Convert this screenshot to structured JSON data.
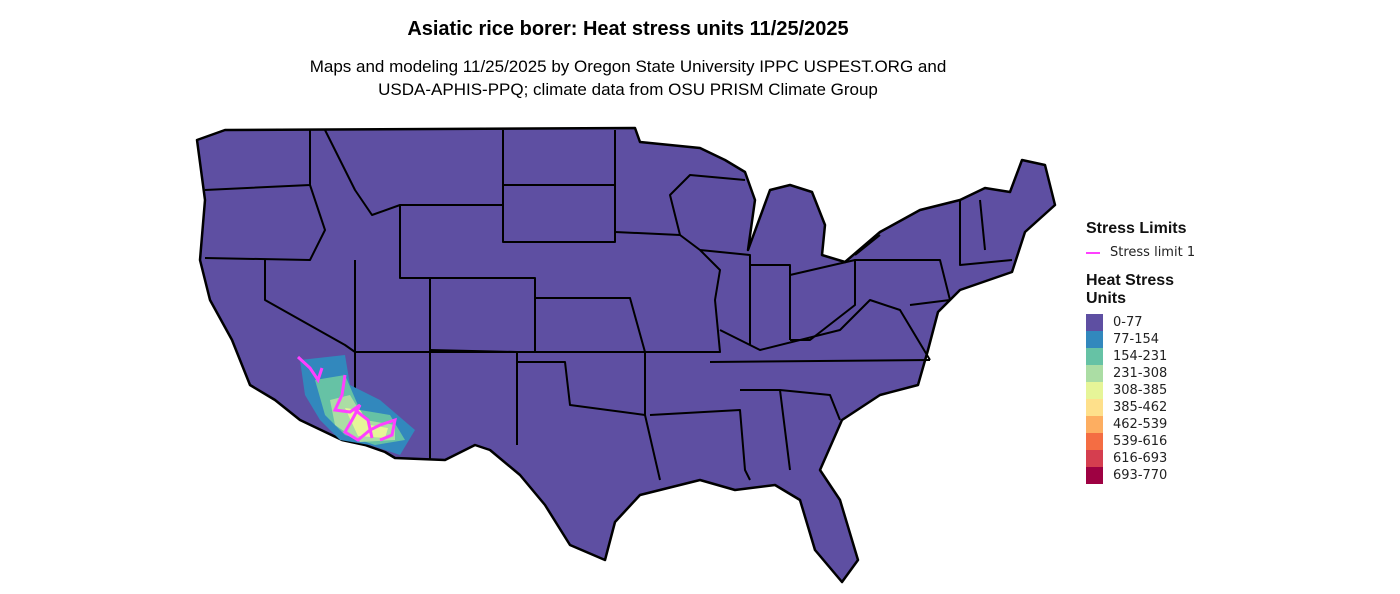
{
  "title": "Asiatic rice borer: Heat stress units 11/25/2025",
  "subtitle_line1": "Maps and modeling 11/25/2025 by Oregon State University IPPC USPEST.ORG and",
  "subtitle_line2": "USDA-APHIS-PPQ; climate data from OSU PRISM Climate Group",
  "legend": {
    "stress_title": "Stress Limits",
    "stress_items": [
      {
        "label": "Stress limit 1",
        "color": "#ff40ff"
      }
    ],
    "heat_title_line1": "Heat Stress",
    "heat_title_line2": "Units",
    "bins": [
      {
        "label": "0-77",
        "color": "#5e4fa2"
      },
      {
        "label": "77-154",
        "color": "#3288bd"
      },
      {
        "label": "154-231",
        "color": "#66c2a5"
      },
      {
        "label": "231-308",
        "color": "#abdda4"
      },
      {
        "label": "308-385",
        "color": "#e6f598"
      },
      {
        "label": "385-462",
        "color": "#fee08b"
      },
      {
        "label": "462-539",
        "color": "#fdae61"
      },
      {
        "label": "539-616",
        "color": "#f46d43"
      },
      {
        "label": "616-693",
        "color": "#d53e4f"
      },
      {
        "label": "693-770",
        "color": "#9e0142"
      }
    ]
  },
  "map": {
    "base_color": "#5e4fa2",
    "border_color": "#000000",
    "region": "Contiguous United States"
  }
}
